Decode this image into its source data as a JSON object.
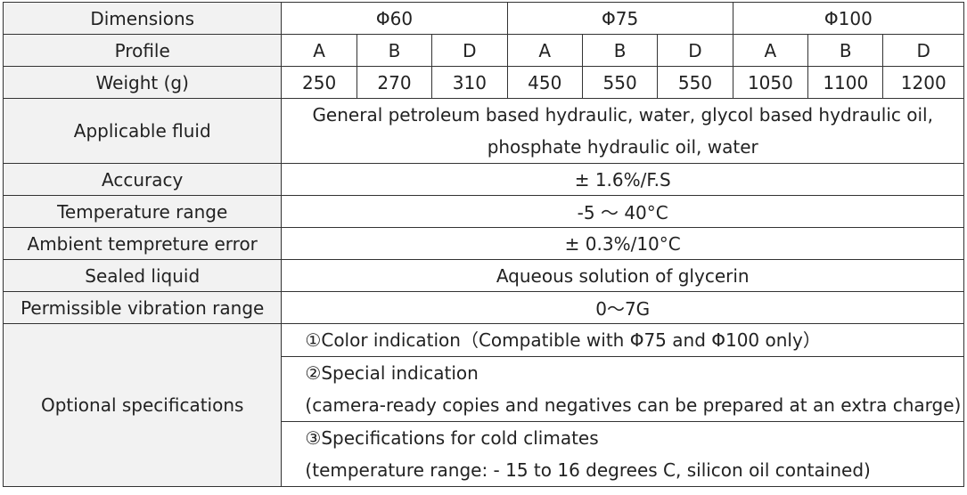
{
  "table": {
    "dimensions_label": "Dimensions",
    "dimension_groups": [
      "Φ60",
      "Φ75",
      "Φ100"
    ],
    "profile_label": "Profile",
    "profiles": [
      "A",
      "B",
      "D",
      "A",
      "B",
      "D",
      "A",
      "B",
      "D"
    ],
    "weight_label": "Weight (g)",
    "weights": [
      "250",
      "270",
      "310",
      "450",
      "550",
      "550",
      "1050",
      "1100",
      "1200"
    ],
    "applicable_fluid_label": "Applicable fluid",
    "applicable_fluid_lines": [
      "General petroleum based hydraulic, water, glycol based hydraulic oil,",
      "phosphate hydraulic oil, water"
    ],
    "accuracy_label": "Accuracy",
    "accuracy_value": "± 1.6%/F.S",
    "temperature_range_label": "Temperature range",
    "temperature_range_value": "-5 〜 40°C",
    "ambient_error_label": "Ambient tempreture error",
    "ambient_error_value": "± 0.3%/10°C",
    "sealed_liquid_label": "Sealed liquid",
    "sealed_liquid_value": "Aqueous solution of glycerin",
    "vibration_label": "Permissible vibration range",
    "vibration_value": "0〜7G",
    "optional_label": "Optional specifications",
    "optional_items": [
      [
        "①Color indication（Compatible with Φ75 and Φ100 only）"
      ],
      [
        "②Special indication",
        "(camera-ready copies and negatives can be prepared at an extra charge)"
      ],
      [
        "③Specifications for cold climates",
        "(temperature range: - 15 to 16 degrees C, silicon oil contained)"
      ]
    ]
  }
}
